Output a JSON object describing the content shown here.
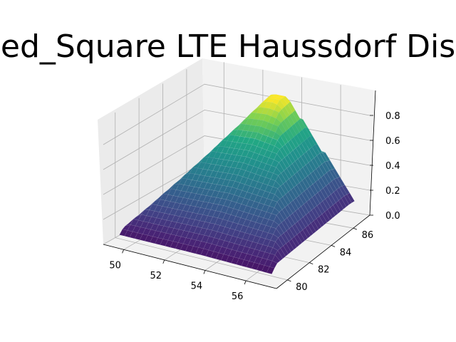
{
  "chart_data": {
    "type": "surface3d",
    "title": "ed_Square LTE Haussdorf Dis",
    "xlabel": "",
    "ylabel": "",
    "zlabel": "",
    "x_ticks": [
      "50",
      "52",
      "54",
      "56"
    ],
    "y_ticks": [
      "80",
      "82",
      "84",
      "86"
    ],
    "z_ticks": [
      "0.0",
      "0.2",
      "0.4",
      "0.6",
      "0.8"
    ],
    "xlim": [
      49,
      57.5
    ],
    "ylim": [
      79,
      87.5
    ],
    "zlim": [
      0,
      1.0
    ],
    "grid": true,
    "colormap": "viridis",
    "peak": {
      "x": 53.5,
      "y": 86.5,
      "z": 0.9
    },
    "corner_values": [
      {
        "x": 49.5,
        "y": 79.5,
        "z": 0.02
      },
      {
        "x": 57.0,
        "y": 79.5,
        "z": 0.0
      },
      {
        "x": 57.0,
        "y": 87.0,
        "z": 0.05
      },
      {
        "x": 49.5,
        "y": 87.0,
        "z": 0.35
      }
    ]
  },
  "colors": {
    "pane": "#f2f2f2",
    "pane_side": "#ebebeb",
    "grid": "#b0b0b0",
    "surface_low": "#440154",
    "surface_high": "#fde725"
  }
}
